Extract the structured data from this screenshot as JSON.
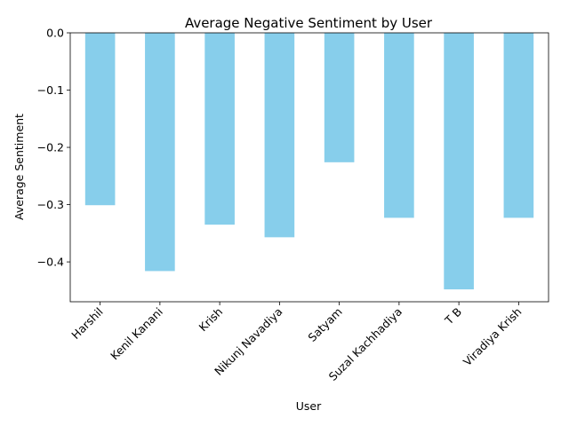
{
  "chart_data": {
    "type": "bar",
    "title": "Average Negative Sentiment by User",
    "xlabel": "User",
    "ylabel": "Average Sentiment",
    "categories": [
      "Harshil",
      "Kenil Kanani",
      "Krish",
      "Nikunj Navadiya",
      "Satyam",
      "Suzal Kachhadiya",
      "T B",
      "Viradiya Krish"
    ],
    "values": [
      -0.301,
      -0.416,
      -0.335,
      -0.357,
      -0.226,
      -0.323,
      -0.448,
      -0.323
    ],
    "ylim": [
      -0.4696,
      0.0
    ],
    "yticks": [
      0.0,
      -0.1,
      -0.2,
      -0.3,
      -0.4
    ],
    "ytick_labels": [
      "0.0",
      "−0.1",
      "−0.2",
      "−0.3",
      "−0.4"
    ],
    "bar_color": "#87ceeb",
    "grid": false,
    "legend": "none",
    "x_tick_rotation": 45
  }
}
